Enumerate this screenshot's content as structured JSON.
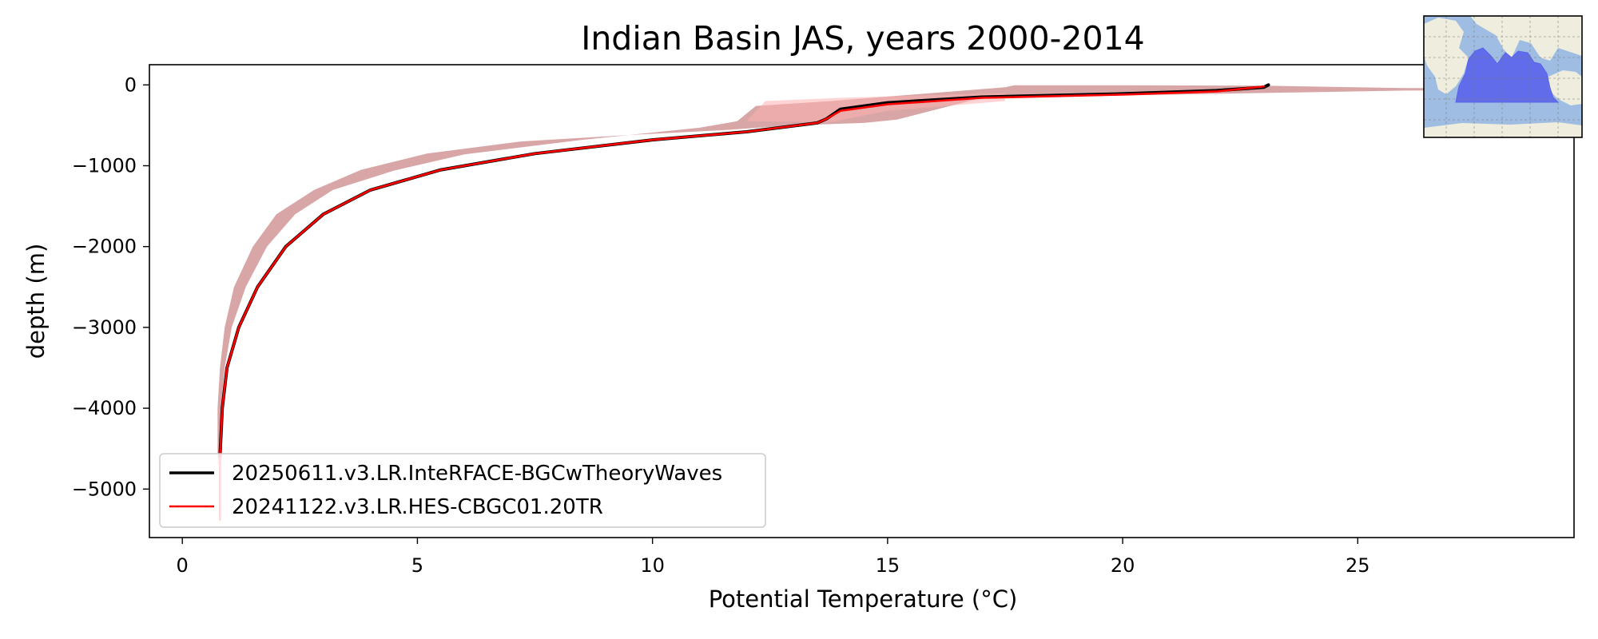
{
  "chart_data": {
    "type": "line",
    "title": "Indian Basin JAS, years 2000-2014",
    "xlabel": "Potential Temperature (°C)",
    "ylabel": "depth (m)",
    "xlim": [
      -0.7,
      29.6
    ],
    "ylim": [
      -5600,
      250
    ],
    "x_ticks": [
      0,
      5,
      10,
      15,
      20,
      25
    ],
    "x_tick_labels": [
      "0",
      "5",
      "10",
      "15",
      "20",
      "25"
    ],
    "y_ticks": [
      0,
      -1000,
      -2000,
      -3000,
      -4000,
      -5000
    ],
    "y_tick_labels": [
      "0",
      "−1000",
      "−2000",
      "−3000",
      "−4000",
      "−5000"
    ],
    "grid": false,
    "legend_position": "lower-left",
    "series": [
      {
        "name": "20250611.v3.LR.InteRFACE-BGCwTheoryWaves",
        "color": "#000000",
        "temperature": [
          0.8,
          0.85,
          0.95,
          1.2,
          1.6,
          2.2,
          3.0,
          4.0,
          5.5,
          7.5,
          10.0,
          12.0,
          13.5,
          13.7,
          14.0,
          15.0,
          17.0,
          20.0,
          22.0,
          23.0,
          23.1
        ],
        "depth": [
          -4600,
          -4000,
          -3500,
          -3000,
          -2500,
          -2000,
          -1600,
          -1300,
          -1050,
          -850,
          -680,
          -580,
          -470,
          -420,
          -300,
          -220,
          -150,
          -110,
          -70,
          -30,
          0
        ]
      },
      {
        "name": "20241122.v3.LR.HES-CBGC01.20TR",
        "color": "#ff0000",
        "temperature": [
          0.8,
          0.8,
          0.85,
          0.95,
          1.2,
          1.6,
          2.2,
          3.0,
          4.0,
          5.5,
          7.5,
          10.0,
          12.0,
          13.5,
          13.7,
          14.0,
          15.0,
          17.0,
          20.0,
          22.0,
          23.0
        ],
        "depth": [
          -5380,
          -4600,
          -4000,
          -3500,
          -3000,
          -2500,
          -2000,
          -1600,
          -1300,
          -1050,
          -850,
          -680,
          -580,
          -470,
          -420,
          -320,
          -240,
          -160,
          -120,
          -80,
          -20
        ]
      }
    ],
    "bands": [
      {
        "color": "#a83a3a",
        "opacity": 0.45,
        "lower": {
          "temperature": [
            0.75,
            0.75,
            0.8,
            0.9,
            1.1,
            1.5,
            2.0,
            2.8,
            3.8,
            5.2,
            7.2,
            9.5,
            11.5,
            13.0,
            14.5,
            15.2,
            17.0,
            20.0,
            23.0,
            26.0,
            29.3
          ],
          "depth": [
            -4700,
            -4000,
            -3500,
            -3000,
            -2500,
            -2000,
            -1600,
            -1300,
            -1050,
            -850,
            -700,
            -620,
            -560,
            -500,
            -470,
            -430,
            -160,
            -130,
            -100,
            -70,
            -60
          ]
        },
        "upper": {
          "temperature": [
            29.3,
            26.0,
            23.0,
            20.0,
            17.7,
            17.5,
            13.8,
            12.2,
            11.8,
            11.0,
            8.5,
            6.0,
            4.5,
            3.2,
            2.4,
            1.8,
            1.35,
            1.05,
            0.9,
            0.82,
            0.8
          ],
          "depth": [
            -30,
            -40,
            -10,
            -5,
            -5,
            -30,
            -200,
            -260,
            -450,
            -530,
            -680,
            -860,
            -1060,
            -1300,
            -1600,
            -2000,
            -2500,
            -3000,
            -3500,
            -4000,
            -4700
          ]
        }
      },
      {
        "color": "#ffb0b0",
        "opacity": 0.55,
        "lower": {
          "temperature": [
            12.0,
            13.8,
            15.0,
            17.5
          ],
          "depth": [
            -450,
            -460,
            -320,
            -200
          ]
        },
        "upper": {
          "temperature": [
            17.5,
            14.0,
            12.4,
            12.0
          ],
          "depth": [
            -100,
            -160,
            -200,
            -450
          ]
        }
      }
    ]
  },
  "inset_map": {
    "name": "Indian Ocean basin locator map",
    "ocean_color": "#9fbde3",
    "land_color": "#efeede",
    "region_color": "#5a63ea"
  }
}
